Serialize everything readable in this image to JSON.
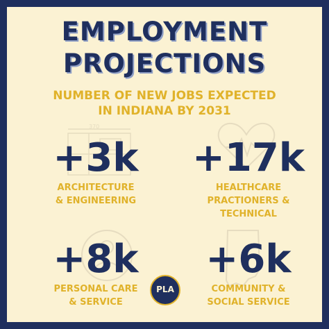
{
  "colors": {
    "navy": "#1f2f5e",
    "gold": "#e0b22a",
    "cream": "#fbf2d3"
  },
  "title": {
    "line1": "EMPLOYMENT",
    "line2": "PROJECTIONS"
  },
  "subtitle": {
    "line1": "NUMBER OF NEW JOBS EXPECTED",
    "line2": "IN INDIANA BY 2031"
  },
  "stats": [
    {
      "value": "+3k",
      "label_line1": "ARCHITECTURE",
      "label_line2": "& ENGINEERING",
      "icon": "blueprint-icon"
    },
    {
      "value": "+17k",
      "label_line1": "HEALTHCARE",
      "label_line2": "PRACTIONERS &",
      "label_line3": "TECHNICAL",
      "icon": "heart-pulse-icon"
    },
    {
      "value": "+8k",
      "label_line1": "PERSONAL CARE",
      "label_line2": "& SERVICE",
      "icon": "person-icon"
    },
    {
      "value": "+6k",
      "label_line1": "COMMUNITY &",
      "label_line2": "SOCIAL SERVICE",
      "icon": "indiana-map-icon"
    }
  ],
  "blueprint_dimension": "370",
  "logo": {
    "text": "PLA",
    "icon": "seal-logo-icon"
  }
}
